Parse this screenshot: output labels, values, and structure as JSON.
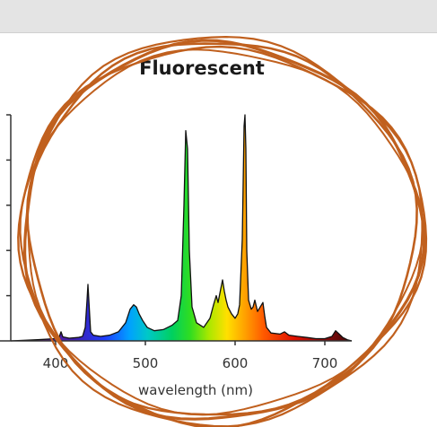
{
  "colors": {
    "topbar": "#e4e4e4",
    "circle": "#c0601e",
    "axis": "#333333",
    "curve": "#111111"
  },
  "chart_data": {
    "type": "area",
    "title": "Fluorescent",
    "xlabel": "wavelength (nm)",
    "ylabel": "",
    "xlim": [
      350,
      730
    ],
    "ylim": [
      0,
      1
    ],
    "grid": false,
    "x_ticks": [
      400,
      500,
      600,
      700
    ],
    "x_tick_labels": [
      "400",
      "500",
      "600",
      "700"
    ],
    "annotation": "hand-drawn orange circle around the spectrum",
    "series": [
      {
        "x": [
          350,
          380,
          400,
          404,
          406,
          408,
          415,
          425,
          430,
          433,
          435,
          436,
          437,
          439,
          442,
          450,
          460,
          470,
          478,
          483,
          487,
          490,
          493,
          497,
          502,
          510,
          520,
          530,
          536,
          540,
          543,
          545,
          547,
          549,
          552,
          557,
          565,
          572,
          576,
          579,
          581,
          584,
          586,
          588,
          590,
          592,
          596,
          600,
          603,
          605,
          608,
          610,
          611,
          612,
          613,
          615,
          618,
          620,
          622,
          625,
          628,
          631,
          633,
          635,
          640,
          650,
          655,
          660,
          670,
          680,
          690,
          700,
          708,
          712,
          716,
          720,
          725,
          730
        ],
        "y": [
          0.0,
          0.005,
          0.01,
          0.018,
          0.04,
          0.018,
          0.012,
          0.015,
          0.02,
          0.06,
          0.18,
          0.25,
          0.18,
          0.04,
          0.025,
          0.02,
          0.025,
          0.04,
          0.08,
          0.14,
          0.16,
          0.15,
          0.12,
          0.09,
          0.06,
          0.045,
          0.05,
          0.07,
          0.09,
          0.2,
          0.6,
          0.93,
          0.85,
          0.4,
          0.15,
          0.08,
          0.06,
          0.1,
          0.16,
          0.2,
          0.17,
          0.23,
          0.27,
          0.22,
          0.18,
          0.15,
          0.12,
          0.1,
          0.12,
          0.16,
          0.45,
          0.95,
          1.0,
          0.85,
          0.4,
          0.18,
          0.14,
          0.15,
          0.18,
          0.13,
          0.15,
          0.17,
          0.11,
          0.06,
          0.035,
          0.03,
          0.04,
          0.025,
          0.02,
          0.015,
          0.01,
          0.01,
          0.02,
          0.045,
          0.03,
          0.015,
          0.005,
          0.0
        ]
      }
    ]
  }
}
